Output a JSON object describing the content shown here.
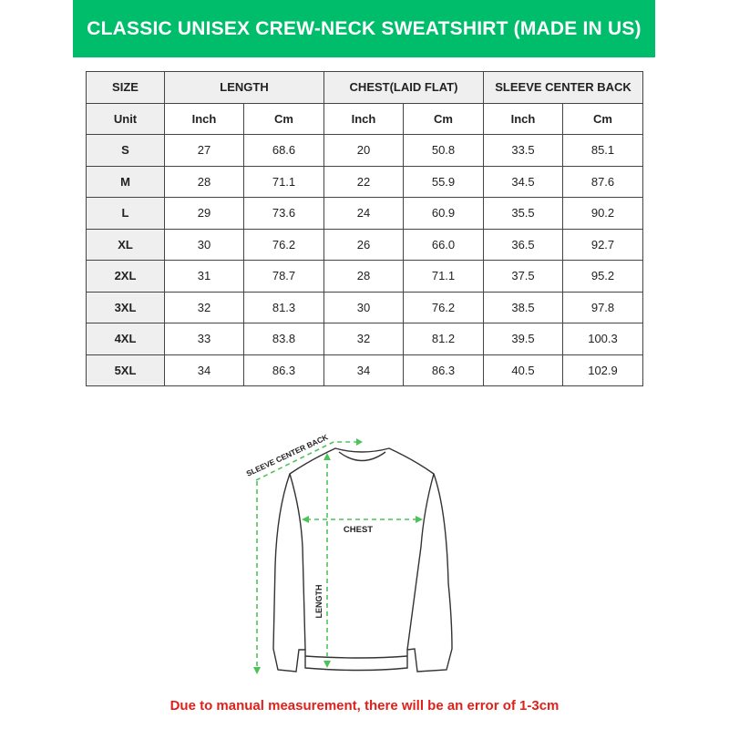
{
  "title": "CLASSIC UNISEX CREW-NECK SWEATSHIRT (MADE IN US)",
  "table": {
    "headers": [
      "SIZE",
      "LENGTH",
      "CHEST(LAID FLAT)",
      "SLEEVE CENTER BACK"
    ],
    "unit_row": [
      "Unit",
      "Inch",
      "Cm",
      "Inch",
      "Cm",
      "Inch",
      "Cm"
    ],
    "rows": [
      [
        "S",
        "27",
        "68.6",
        "20",
        "50.8",
        "33.5",
        "85.1"
      ],
      [
        "M",
        "28",
        "71.1",
        "22",
        "55.9",
        "34.5",
        "87.6"
      ],
      [
        "L",
        "29",
        "73.6",
        "24",
        "60.9",
        "35.5",
        "90.2"
      ],
      [
        "XL",
        "30",
        "76.2",
        "26",
        "66.0",
        "36.5",
        "92.7"
      ],
      [
        "2XL",
        "31",
        "78.7",
        "28",
        "71.1",
        "37.5",
        "95.2"
      ],
      [
        "3XL",
        "32",
        "81.3",
        "30",
        "76.2",
        "38.5",
        "97.8"
      ],
      [
        "4XL",
        "33",
        "83.8",
        "32",
        "81.2",
        "39.5",
        "100.3"
      ],
      [
        "5XL",
        "34",
        "86.3",
        "34",
        "86.3",
        "40.5",
        "102.9"
      ]
    ]
  },
  "diagram": {
    "sleeve_label": "SLEEVE CENTER BACK",
    "chest_label": "CHEST",
    "length_label": "LENGTH"
  },
  "note": "Due to manual measurement, there will be an error of 1-3cm",
  "colors": {
    "banner": "#00bd6b",
    "arrows": "#4cc35a",
    "note": "#e0201b"
  }
}
